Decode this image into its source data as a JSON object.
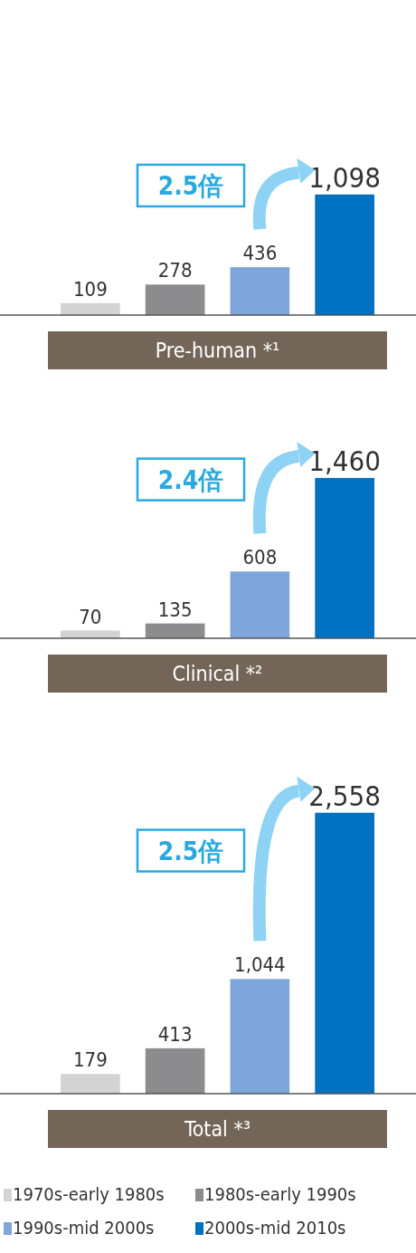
{
  "chart_data": [
    {
      "type": "bar",
      "stacked": true,
      "categories": [
        null,
        null,
        null,
        null
      ],
      "xlabel": "Pre-human *¹",
      "legend": false,
      "annotations": [
        "2.5倍"
      ],
      "series": [
        {
          "color": "#d3d3d3",
          "values": [
            109,
            null,
            null,
            null
          ],
          "value_labels": [
            "109",
            null,
            null,
            null
          ]
        },
        {
          "color": "#8c8c8e",
          "values": [
            null,
            278,
            null,
            null
          ],
          "value_labels": [
            null,
            "278",
            null,
            null
          ]
        },
        {
          "color": "#7fa6da",
          "values": [
            null,
            null,
            436,
            null
          ],
          "value_labels": [
            null,
            null,
            "436",
            null
          ]
        },
        {
          "color": "#0070c0",
          "values": [
            null,
            null,
            null,
            1098
          ],
          "value_labels": [
            null,
            null,
            null,
            "1,098"
          ]
        }
      ]
    },
    {
      "type": "bar",
      "stacked": true,
      "categories": [
        null,
        null,
        null,
        null
      ],
      "xlabel": "Clinical *²",
      "legend": false,
      "annotations": [
        "2.4倍"
      ],
      "series": [
        {
          "color": "#d3d3d3",
          "values": [
            70,
            null,
            null,
            null
          ],
          "value_labels": [
            "70",
            null,
            null,
            null
          ]
        },
        {
          "color": "#8c8c8e",
          "values": [
            null,
            135,
            null,
            null
          ],
          "value_labels": [
            null,
            "135",
            null,
            null
          ]
        },
        {
          "color": "#7fa6da",
          "values": [
            null,
            null,
            608,
            null
          ],
          "value_labels": [
            null,
            null,
            "608",
            null
          ]
        },
        {
          "color": "#0070c0",
          "values": [
            null,
            null,
            null,
            1460
          ],
          "value_labels": [
            null,
            null,
            null,
            "1,460"
          ]
        }
      ]
    },
    {
      "type": "bar",
      "stacked": true,
      "categories": [
        null,
        null,
        null,
        null
      ],
      "xlabel": "Total *³",
      "legend": "bottom",
      "annotations": [
        "2.5倍"
      ],
      "series": [
        {
          "name": "1970s-early 1980s",
          "color": "#d3d3d3",
          "values": [
            179,
            null,
            null,
            null
          ],
          "value_labels": [
            "179",
            null,
            null,
            null
          ]
        },
        {
          "name": "1980s-early 1990s",
          "color": "#8c8c8e",
          "values": [
            null,
            413,
            null,
            null
          ],
          "value_labels": [
            null,
            "413",
            null,
            null
          ]
        },
        {
          "name": "1990s-mid 2000s",
          "color": "#7fa6da",
          "values": [
            null,
            null,
            1044,
            null
          ],
          "value_labels": [
            null,
            null,
            "1,044",
            null
          ]
        },
        {
          "name": "2000s-mid 2010s",
          "color": "#0070c0",
          "values": [
            null,
            null,
            null,
            2558
          ],
          "value_labels": [
            null,
            null,
            null,
            "2,558"
          ]
        }
      ]
    }
  ]
}
